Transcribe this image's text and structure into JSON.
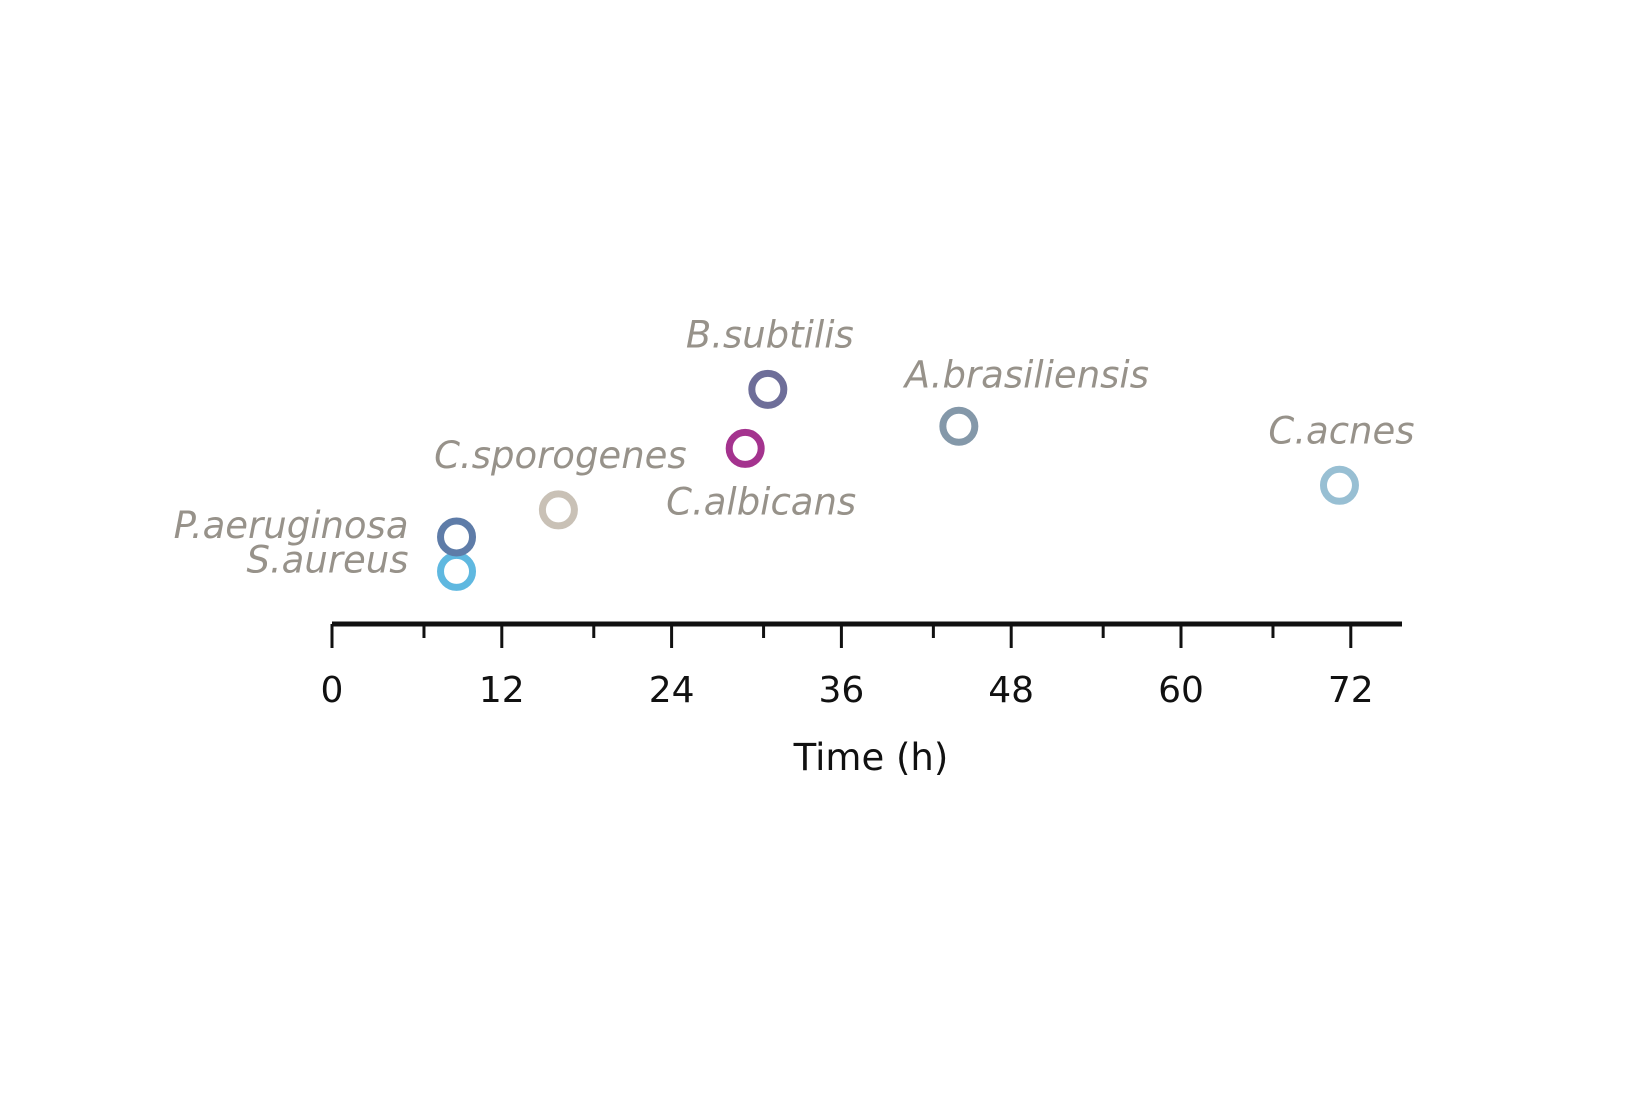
{
  "chart_data": {
    "type": "scatter",
    "title": "",
    "xlabel": "Time (h)",
    "ylabel": "",
    "xlim": [
      0,
      76
    ],
    "x_ticks": [
      0,
      12,
      24,
      36,
      48,
      60,
      72
    ],
    "x_minor_ticks": [
      6.5,
      18.5,
      30.5,
      42.5,
      54.5,
      66.5
    ],
    "grid": false,
    "legend": "none",
    "points": [
      {
        "label": "S.aureus",
        "x": 8.8,
        "y": 1.0,
        "color": "#5fb8e0",
        "label_side": "left-above"
      },
      {
        "label": "P.aeruginosa",
        "x": 8.8,
        "y": 2.4,
        "color": "#5e7ca8",
        "label_side": "left-above"
      },
      {
        "label": "C.sporogenes",
        "x": 16.0,
        "y": 3.5,
        "color": "#c9c1b6",
        "label_side": "above-center"
      },
      {
        "label": "C.albicans",
        "x": 29.2,
        "y": 6.0,
        "color": "#a4338e",
        "label_side": "below-left"
      },
      {
        "label": "B.subtilis",
        "x": 30.8,
        "y": 8.4,
        "color": "#6e6e99",
        "label_side": "above-center"
      },
      {
        "label": "A.brasiliensis",
        "x": 44.3,
        "y": 6.9,
        "color": "#8498a9",
        "label_side": "above-right"
      },
      {
        "label": "C.acnes",
        "x": 71.2,
        "y": 4.5,
        "color": "#98bfd3",
        "label_side": "above-center"
      }
    ]
  }
}
